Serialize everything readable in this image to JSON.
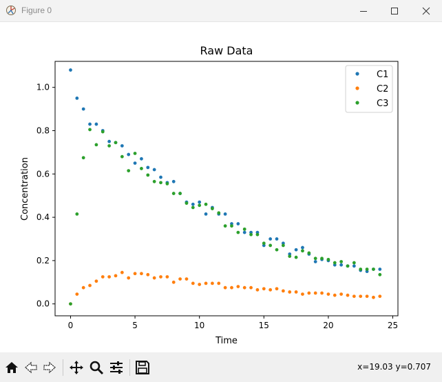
{
  "window": {
    "title": "Figure 0"
  },
  "toolbar": {
    "buttons": [
      "home-icon",
      "back-icon",
      "forward-icon",
      "pan-icon",
      "zoom-icon",
      "configure-icon",
      "save-icon"
    ],
    "coords": "x=19.03 y=0.707"
  },
  "colors": {
    "C1": "#1f77b4",
    "C2": "#ff7f0e",
    "C3": "#2ca02c"
  },
  "chart_data": {
    "type": "scatter",
    "title": "Raw Data",
    "xlabel": "Time",
    "ylabel": "Concentration",
    "xlim": [
      -1.2,
      25.4
    ],
    "ylim": [
      -0.055,
      1.12
    ],
    "xticks": [
      0,
      5,
      10,
      15,
      20,
      25
    ],
    "yticks": [
      0.0,
      0.2,
      0.4,
      0.6,
      0.8,
      1.0
    ],
    "xtick_labels": [
      "0",
      "5",
      "10",
      "15",
      "20",
      "25"
    ],
    "ytick_labels": [
      "0.0",
      "0.2",
      "0.4",
      "0.6",
      "0.8",
      "1.0"
    ],
    "legend_position": "top-right",
    "x": [
      0,
      0.5,
      1,
      1.5,
      2,
      2.5,
      3,
      3.5,
      4,
      4.5,
      5,
      5.5,
      6,
      6.5,
      7,
      7.5,
      8,
      8.5,
      9,
      9.5,
      10,
      10.5,
      11,
      11.5,
      12,
      12.5,
      13,
      13.5,
      14,
      14.5,
      15,
      15.5,
      16,
      16.5,
      17,
      17.5,
      18,
      18.5,
      19,
      19.5,
      20,
      20.5,
      21,
      21.5,
      22,
      22.5,
      23,
      23.5,
      24
    ],
    "series": [
      {
        "name": "C1",
        "values": [
          1.08,
          0.95,
          0.9,
          0.83,
          0.83,
          0.8,
          0.75,
          0.745,
          0.73,
          0.69,
          0.65,
          0.67,
          0.63,
          0.62,
          0.585,
          0.56,
          0.565,
          0.51,
          0.47,
          0.46,
          0.47,
          0.415,
          0.445,
          0.415,
          0.415,
          0.37,
          0.37,
          0.33,
          0.33,
          0.33,
          0.27,
          0.3,
          0.3,
          0.28,
          0.23,
          0.25,
          0.26,
          0.23,
          0.195,
          0.205,
          0.2,
          0.18,
          0.18,
          0.175,
          0.175,
          0.155,
          0.15,
          0.16,
          0.16
        ]
      },
      {
        "name": "C2",
        "values": [
          0.0,
          0.045,
          0.075,
          0.085,
          0.105,
          0.125,
          0.125,
          0.13,
          0.145,
          0.12,
          0.14,
          0.14,
          0.135,
          0.12,
          0.125,
          0.125,
          0.1,
          0.115,
          0.115,
          0.095,
          0.09,
          0.095,
          0.095,
          0.095,
          0.075,
          0.075,
          0.08,
          0.075,
          0.075,
          0.065,
          0.07,
          0.065,
          0.07,
          0.06,
          0.055,
          0.055,
          0.045,
          0.05,
          0.05,
          0.05,
          0.045,
          0.04,
          0.045,
          0.04,
          0.035,
          0.035,
          0.035,
          0.03,
          0.035
        ]
      },
      {
        "name": "C3",
        "values": [
          0.0,
          0.415,
          0.675,
          0.805,
          0.735,
          0.795,
          0.73,
          0.745,
          0.68,
          0.615,
          0.695,
          0.625,
          0.595,
          0.565,
          0.56,
          0.555,
          0.51,
          0.51,
          0.465,
          0.445,
          0.455,
          0.46,
          0.44,
          0.42,
          0.36,
          0.36,
          0.33,
          0.345,
          0.32,
          0.32,
          0.28,
          0.27,
          0.25,
          0.27,
          0.22,
          0.215,
          0.245,
          0.235,
          0.21,
          0.21,
          0.205,
          0.19,
          0.195,
          0.175,
          0.19,
          0.16,
          0.16,
          0.16,
          0.135
        ]
      }
    ]
  }
}
